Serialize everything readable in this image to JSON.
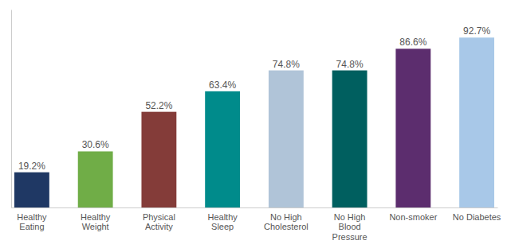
{
  "chart_data": {
    "type": "bar",
    "categories": [
      "Healthy\nEating",
      "Healthy\nWeight",
      "Physical\nActivity",
      "Healthy\nSleep",
      "No High\nCholesterol",
      "No High\nBlood\nPressure",
      "Non-smoker",
      "No Diabetes"
    ],
    "values": [
      19.2,
      30.6,
      52.2,
      63.4,
      74.8,
      74.8,
      86.6,
      92.7
    ],
    "colors": [
      "#1f3864",
      "#70ad47",
      "#843c39",
      "#008b8b",
      "#b0c4d8",
      "#005f5f",
      "#5c2d6e",
      "#a8c8e8"
    ],
    "value_labels": [
      "19.2%",
      "30.6%",
      "52.2%",
      "63.4%",
      "74.8%",
      "74.8%",
      "86.6%",
      "92.7%"
    ],
    "data_labels": true,
    "ylim": [
      0,
      108
    ],
    "grid": false,
    "tick_labels": "x"
  }
}
